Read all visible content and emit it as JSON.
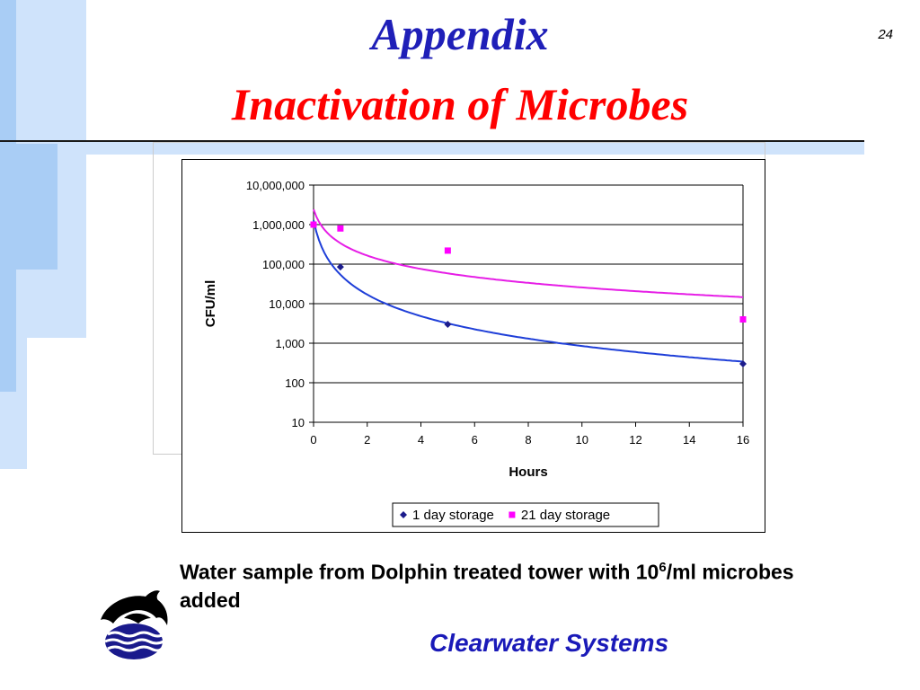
{
  "slide": {
    "title": "Appendix",
    "subtitle": "Inactivation of Microbes",
    "page_number": "24",
    "caption_before": "Water sample from Dolphin treated tower with 10",
    "caption_superscript": "6",
    "caption_after": "/ml microbes added",
    "brand": "Clearwater Systems",
    "colors": {
      "title": "#1f1fb8",
      "subtitle": "#ff0000",
      "brand": "#1a1ab8",
      "decor_light_blue": "#cfe3fb",
      "decor_blue": "#a9cdf5"
    },
    "logo_icon": "dolphin-waves-icon"
  },
  "chart_data": {
    "type": "scatter",
    "title": "",
    "xlabel": "Hours",
    "ylabel": "CFU/ml",
    "y_scale": "log",
    "xlim": [
      0,
      16
    ],
    "ylim": [
      10,
      10000000
    ],
    "x_ticks": [
      "0",
      "2",
      "4",
      "6",
      "8",
      "10",
      "12",
      "14",
      "16"
    ],
    "y_ticks": [
      "10",
      "100",
      "1,000",
      "10,000",
      "100,000",
      "1,000,000",
      "10,000,000"
    ],
    "grid": "horizontal",
    "legend_position": "bottom",
    "series": [
      {
        "name": "1 day storage",
        "marker": "diamond",
        "color": "#1c1c8c",
        "trendline_color": "#1f3fd8",
        "points": [
          {
            "x": 0,
            "y": 1000000
          },
          {
            "x": 1,
            "y": 85000
          },
          {
            "x": 5,
            "y": 3000
          },
          {
            "x": 16,
            "y": 300
          }
        ]
      },
      {
        "name": "21 day storage",
        "marker": "square",
        "color": "#ff00ff",
        "trendline_color": "#e61ee6",
        "points": [
          {
            "x": 0,
            "y": 1000000
          },
          {
            "x": 1,
            "y": 800000
          },
          {
            "x": 5,
            "y": 220000
          },
          {
            "x": 16,
            "y": 4000
          }
        ]
      }
    ]
  }
}
